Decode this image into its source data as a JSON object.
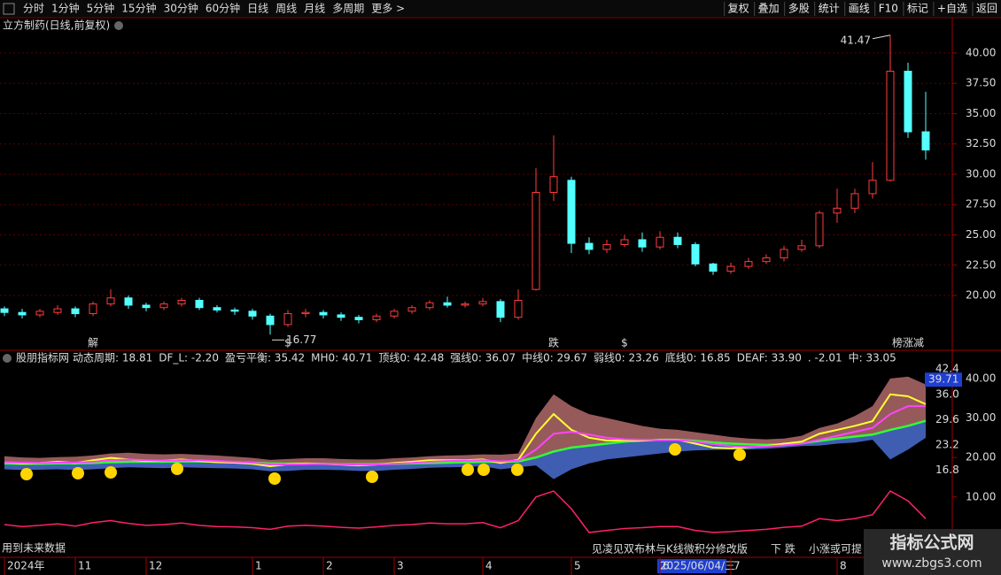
{
  "toolbar": {
    "periods": [
      "分时",
      "1分钟",
      "5分钟",
      "15分钟",
      "30分钟",
      "60分钟",
      "日线",
      "周线",
      "月线",
      "多周期",
      "更多 >"
    ],
    "active_index": 6,
    "tools": [
      "复权",
      "叠加",
      "多股",
      "统计",
      "画线",
      "F10",
      "标记",
      "+自选",
      "返回"
    ]
  },
  "chart_data": [
    {
      "type": "candlestick",
      "title": "立方制药(日线,前复权)",
      "categories": [
        "2024年",
        null,
        null,
        null,
        "11",
        null,
        null,
        null,
        "12",
        null,
        null,
        null,
        null,
        null,
        "1",
        null,
        null,
        null,
        "2",
        null,
        null,
        null,
        "3",
        null,
        null,
        null,
        null,
        "4",
        null,
        null,
        null,
        null,
        "5",
        null,
        null,
        null,
        null,
        "6",
        null,
        null,
        null,
        "7",
        null,
        null,
        null,
        null,
        null,
        "8",
        null,
        null,
        null,
        null,
        null
      ],
      "open": [
        18.9,
        18.6,
        18.4,
        18.6,
        18.9,
        18.5,
        19.3,
        19.8,
        19.2,
        19.0,
        19.3,
        19.6,
        19.0,
        18.8,
        18.7,
        18.3,
        17.6,
        18.5,
        18.6,
        18.4,
        18.2,
        18.0,
        18.3,
        18.7,
        19.0,
        19.4,
        19.2,
        19.3,
        19.5,
        18.2,
        20.5,
        28.5,
        29.5,
        24.3,
        23.8,
        24.2,
        24.6,
        24.0,
        24.8,
        24.2,
        22.6,
        22.0,
        22.4,
        22.8,
        23.1,
        23.8,
        24.1,
        26.8,
        27.2,
        28.4,
        29.5,
        38.5,
        33.5
      ],
      "high": [
        19.1,
        18.9,
        18.9,
        19.2,
        19.1,
        19.5,
        20.5,
        20.0,
        19.4,
        19.5,
        19.8,
        19.8,
        19.2,
        19.0,
        18.9,
        18.5,
        18.8,
        18.9,
        18.8,
        18.6,
        18.4,
        18.5,
        18.9,
        19.2,
        19.6,
        19.9,
        19.5,
        19.8,
        19.7,
        20.5,
        30.5,
        33.2,
        29.8,
        24.8,
        24.6,
        25.0,
        25.2,
        25.3,
        25.2,
        24.4,
        22.7,
        22.7,
        23.1,
        23.4,
        24.1,
        24.6,
        27.0,
        28.8,
        28.8,
        31.0,
        41.47,
        39.2,
        36.8
      ],
      "low": [
        18.3,
        18.1,
        18.2,
        18.4,
        18.2,
        18.3,
        19.1,
        18.9,
        18.7,
        18.8,
        19.1,
        18.8,
        18.6,
        18.4,
        18.0,
        16.77,
        17.4,
        18.2,
        18.1,
        17.9,
        17.7,
        17.8,
        18.1,
        18.5,
        18.8,
        19.0,
        19.0,
        19.1,
        17.8,
        18.0,
        20.4,
        27.8,
        23.5,
        23.4,
        23.5,
        24.0,
        23.6,
        23.8,
        23.9,
        22.4,
        21.7,
        21.8,
        22.2,
        22.6,
        22.8,
        23.6,
        23.9,
        26.0,
        26.8,
        28.0,
        29.4,
        33.0,
        31.2
      ],
      "close": [
        18.6,
        18.4,
        18.7,
        18.9,
        18.5,
        19.3,
        19.8,
        19.2,
        19.0,
        19.3,
        19.6,
        19.0,
        18.8,
        18.7,
        18.3,
        17.6,
        18.5,
        18.6,
        18.4,
        18.2,
        18.0,
        18.3,
        18.7,
        19.0,
        19.4,
        19.2,
        19.3,
        19.5,
        18.2,
        19.6,
        28.5,
        29.8,
        24.3,
        23.8,
        24.2,
        24.6,
        24.0,
        24.8,
        24.2,
        22.6,
        22.0,
        22.4,
        22.8,
        23.1,
        23.8,
        24.1,
        26.8,
        27.2,
        28.4,
        29.5,
        38.5,
        33.5,
        32.0
      ],
      "up_color": "#ff3c3c",
      "down_color": "#54ffff",
      "ylim": [
        15.55,
        41.6
      ],
      "yticks": [
        {
          "value": 20,
          "label": "20.00"
        },
        {
          "value": 22.5,
          "label": "22.50"
        },
        {
          "value": 25,
          "label": "25.00"
        },
        {
          "value": 27.5,
          "label": "27.50"
        },
        {
          "value": 30,
          "label": "30.00"
        },
        {
          "value": 32.5,
          "label": "32.50"
        },
        {
          "value": 35,
          "label": "35.00"
        },
        {
          "value": 37.5,
          "label": "37.50"
        },
        {
          "value": 40,
          "label": "40.00"
        }
      ],
      "grid": true,
      "max_label": "41.47",
      "min_label": "16.77",
      "signals": [
        null,
        null,
        null,
        null,
        null,
        {
          "text": "解",
          "color": "#00e5ff"
        },
        null,
        null,
        null,
        null,
        null,
        null,
        null,
        null,
        null,
        null,
        {
          "text": "$",
          "color": "#ff3030"
        },
        null,
        null,
        null,
        null,
        null,
        null,
        null,
        null,
        null,
        null,
        null,
        null,
        null,
        null,
        {
          "text": "跌",
          "color": "#00ff60"
        },
        null,
        null,
        null,
        {
          "text": "$",
          "color": "#ff3030"
        },
        null,
        null,
        null,
        null,
        null,
        null,
        null,
        null,
        null,
        null,
        null,
        null,
        null,
        null,
        null,
        {
          "text": "榜涨减",
          "color": "#ff9a30"
        },
        null
      ],
      "cursor_label": "2025/06/04/三"
    },
    {
      "type": "line",
      "title": "股朋指标网",
      "header": [
        {
          "text": "动态周期: 18.81",
          "color": "#ffffff"
        },
        {
          "text": "DF_L: -2.20",
          "color": "#ff44ff"
        },
        {
          "text": "盈亏平衡: 35.42",
          "color": "#ffffff"
        },
        {
          "text": "MH0: 40.71",
          "color": "#33ff33"
        },
        {
          "text": "顶线0: 42.48",
          "color": "#33ff33"
        },
        {
          "text": "强线0: 36.07",
          "color": "#ffffff"
        },
        {
          "text": "中线0: 29.67",
          "color": "#33ff33"
        },
        {
          "text": "弱线0: 23.26",
          "color": "#ffffff"
        },
        {
          "text": "底线0: 16.85",
          "color": "#33ff33"
        },
        {
          "text": "DEAF: 33.90",
          "color": "#ffff33"
        },
        {
          "text": ". -2.01",
          "color": "#ff3333"
        },
        {
          "text": "中: 33.05",
          "color": "#ff44ff"
        }
      ],
      "ylim": [
        -5.3,
        42.9
      ],
      "yticks": [
        {
          "value": 10,
          "label": "10.00"
        },
        {
          "value": 20,
          "label": "20.00"
        },
        {
          "value": 30,
          "label": "30.00"
        },
        {
          "value": 40,
          "label": "40.00"
        }
      ],
      "bands": [
        {
          "color": "#b06a6a",
          "values": [
            20.3,
            20.0,
            19.9,
            20.1,
            20.2,
            20.5,
            21.0,
            21.2,
            20.9,
            20.8,
            20.9,
            20.7,
            20.5,
            20.2,
            19.9,
            19.4,
            19.6,
            19.8,
            19.8,
            19.6,
            19.5,
            19.5,
            19.8,
            20.0,
            20.3,
            20.5,
            20.6,
            20.8,
            20.7,
            21.0,
            30.0,
            36.0,
            33.0,
            31.0,
            30.0,
            29.0,
            28.0,
            27.3,
            27.0,
            26.4,
            25.8,
            25.2,
            24.8,
            24.6,
            24.8,
            25.5,
            27.5,
            28.6,
            30.5,
            33.0,
            40.0,
            40.5,
            38.5
          ]
        },
        {
          "color": "#4a6ed0",
          "values": [
            17.0,
            16.8,
            16.9,
            17.0,
            16.8,
            17.0,
            17.3,
            17.5,
            17.4,
            17.3,
            17.5,
            17.4,
            17.3,
            17.2,
            17.0,
            16.5,
            16.6,
            16.9,
            16.9,
            16.8,
            16.6,
            16.6,
            16.9,
            17.1,
            17.4,
            17.5,
            17.6,
            17.8,
            17.0,
            17.5,
            18.0,
            14.5,
            17.0,
            18.5,
            19.5,
            20.0,
            20.5,
            21.0,
            21.5,
            21.8,
            21.9,
            22.0,
            22.0,
            22.2,
            22.5,
            22.9,
            23.0,
            23.5,
            23.8,
            24.5,
            19.5,
            22.0,
            25.0
          ]
        }
      ],
      "series": [
        {
          "color": "#33ff33",
          "width": 2.5,
          "values": [
            18.5,
            18.4,
            18.4,
            18.5,
            18.5,
            18.6,
            18.8,
            18.9,
            18.9,
            18.9,
            19.0,
            19.0,
            18.9,
            18.8,
            18.7,
            18.5,
            18.4,
            18.4,
            18.4,
            18.3,
            18.3,
            18.3,
            18.4,
            18.5,
            18.6,
            18.7,
            18.8,
            18.9,
            18.9,
            19.0,
            20.0,
            21.5,
            22.5,
            23.0,
            23.5,
            24.0,
            24.3,
            24.5,
            24.5,
            24.2,
            23.8,
            23.5,
            23.3,
            23.2,
            23.3,
            23.6,
            24.2,
            24.8,
            25.3,
            25.8,
            27.0,
            28.0,
            29.3
          ]
        },
        {
          "color": "#ffff33",
          "width": 2,
          "values": [
            18.8,
            18.5,
            18.6,
            18.9,
            18.6,
            19.3,
            19.9,
            19.5,
            19.1,
            19.2,
            19.5,
            19.1,
            18.8,
            18.7,
            18.4,
            17.8,
            18.3,
            18.5,
            18.4,
            18.2,
            18.0,
            18.2,
            18.6,
            18.9,
            19.3,
            19.3,
            19.3,
            19.5,
            18.6,
            19.4,
            26.0,
            31.0,
            27.0,
            25.0,
            24.3,
            24.3,
            24.3,
            24.5,
            24.5,
            23.5,
            22.5,
            22.3,
            22.6,
            22.9,
            23.5,
            24.0,
            26.0,
            27.0,
            28.0,
            29.2,
            36.0,
            35.5,
            33.5
          ]
        },
        {
          "color": "#ff44ff",
          "width": 2,
          "values": [
            18.8,
            18.7,
            18.6,
            18.7,
            18.7,
            18.9,
            19.3,
            19.5,
            19.3,
            19.2,
            19.3,
            19.3,
            19.1,
            18.9,
            18.7,
            18.3,
            18.2,
            18.3,
            18.4,
            18.3,
            18.2,
            18.2,
            18.4,
            18.6,
            18.9,
            19.1,
            19.2,
            19.3,
            19.0,
            19.2,
            22.0,
            26.0,
            26.5,
            25.8,
            25.0,
            24.6,
            24.5,
            24.4,
            24.4,
            24.0,
            23.4,
            22.9,
            22.7,
            22.8,
            23.1,
            23.5,
            24.5,
            25.5,
            26.5,
            27.5,
            31.0,
            33.0,
            33.0
          ]
        },
        {
          "color": "#ff2266",
          "width": 1.5,
          "values": [
            3.0,
            2.5,
            2.8,
            3.2,
            2.6,
            3.5,
            4.0,
            3.3,
            2.8,
            3.0,
            3.4,
            2.8,
            2.5,
            2.4,
            2.2,
            1.8,
            2.6,
            2.8,
            2.6,
            2.3,
            2.1,
            2.4,
            2.8,
            3.0,
            3.4,
            3.2,
            3.2,
            3.5,
            2.2,
            4.0,
            10.0,
            11.5,
            7.0,
            1.0,
            1.5,
            2.0,
            2.2,
            2.5,
            2.5,
            1.5,
            1.0,
            1.2,
            1.5,
            1.8,
            2.3,
            2.6,
            4.5,
            4.0,
            4.5,
            5.5,
            11.5,
            9.0,
            4.5
          ]
        }
      ],
      "tags": [
        {
          "value": 39.71,
          "label": "39.71",
          "color": "#ffffff",
          "box": "#1f3fd0"
        },
        {
          "value": 42.4,
          "label": "42.4",
          "color": "#33ff33",
          "box": null
        },
        {
          "value": 36,
          "label": "36.0",
          "color": "#ffff33",
          "box": null
        },
        {
          "value": 29.6,
          "label": "29.6",
          "color": "#6aa0ff",
          "box": null
        },
        {
          "value": 23.2,
          "label": "23.2",
          "color": "#ffffff",
          "box": null
        },
        {
          "value": 16.8,
          "label": "16.8",
          "color": "#33ff33",
          "box": null
        }
      ]
    }
  ],
  "notes": {
    "future_data": "用到未来数据",
    "formula": "见凌见双布林与K线微积分修改版",
    "down": "下 跌",
    "small_rise": "小涨或可提"
  },
  "watermark": {
    "name": "指标公式网",
    "url": "www.zbgs3.com"
  }
}
